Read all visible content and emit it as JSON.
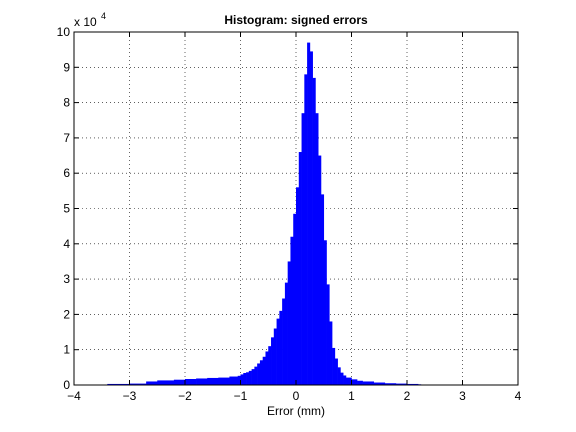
{
  "chart_data": {
    "type": "bar",
    "title": "Histogram: signed errors",
    "xlabel": "Error (mm)",
    "ylabel": "",
    "xlim": [
      -4,
      4
    ],
    "ylim": [
      0,
      100000
    ],
    "y_scale_text": "x 10",
    "y_scale_exponent": "4",
    "x_ticks": [
      -4,
      -3,
      -2,
      -1,
      0,
      1,
      2,
      3,
      4
    ],
    "x_tick_labels": [
      "−4",
      "−3",
      "−2",
      "−1",
      "0",
      "1",
      "2",
      "3",
      "4"
    ],
    "y_ticks": [
      0,
      10000,
      20000,
      30000,
      40000,
      50000,
      60000,
      70000,
      80000,
      90000,
      100000
    ],
    "y_tick_labels": [
      "0",
      "1",
      "2",
      "3",
      "4",
      "5",
      "6",
      "7",
      "8",
      "9",
      "10"
    ],
    "grid": true,
    "bar_color": "#0000ff",
    "bin_width": 0.05,
    "bins": [
      [
        -3.4,
        300
      ],
      [
        -3.0,
        400
      ],
      [
        -2.7,
        1000
      ],
      [
        -2.5,
        1300
      ],
      [
        -2.2,
        1500
      ],
      [
        -2.0,
        1700
      ],
      [
        -1.8,
        1850
      ],
      [
        -1.6,
        2000
      ],
      [
        -1.4,
        2100
      ],
      [
        -1.2,
        2400
      ],
      [
        -1.05,
        2600
      ],
      [
        -1.0,
        3000
      ],
      [
        -0.95,
        3400
      ],
      [
        -0.9,
        3600
      ],
      [
        -0.85,
        4000
      ],
      [
        -0.8,
        4500
      ],
      [
        -0.75,
        5200
      ],
      [
        -0.7,
        6100
      ],
      [
        -0.65,
        7000
      ],
      [
        -0.6,
        8000
      ],
      [
        -0.55,
        9500
      ],
      [
        -0.5,
        11000
      ],
      [
        -0.45,
        13500
      ],
      [
        -0.4,
        16000
      ],
      [
        -0.35,
        18800
      ],
      [
        -0.3,
        21000
      ],
      [
        -0.25,
        24500
      ],
      [
        -0.2,
        29000
      ],
      [
        -0.15,
        35000
      ],
      [
        -0.1,
        42000
      ],
      [
        -0.05,
        48500
      ],
      [
        0.0,
        56000
      ],
      [
        0.05,
        66000
      ],
      [
        0.1,
        77000
      ],
      [
        0.15,
        88000
      ],
      [
        0.2,
        97000
      ],
      [
        0.25,
        94500
      ],
      [
        0.3,
        87000
      ],
      [
        0.35,
        77000
      ],
      [
        0.4,
        65000
      ],
      [
        0.45,
        54000
      ],
      [
        0.5,
        41000
      ],
      [
        0.55,
        28500
      ],
      [
        0.6,
        18000
      ],
      [
        0.65,
        10500
      ],
      [
        0.7,
        7500
      ],
      [
        0.75,
        5000
      ],
      [
        0.8,
        3500
      ],
      [
        0.85,
        2700
      ],
      [
        0.9,
        2100
      ],
      [
        1.0,
        1600
      ],
      [
        1.1,
        1200
      ],
      [
        1.2,
        1000
      ],
      [
        1.4,
        700
      ],
      [
        1.6,
        500
      ],
      [
        1.8,
        400
      ],
      [
        2.0,
        300
      ],
      [
        2.2,
        200
      ]
    ]
  }
}
